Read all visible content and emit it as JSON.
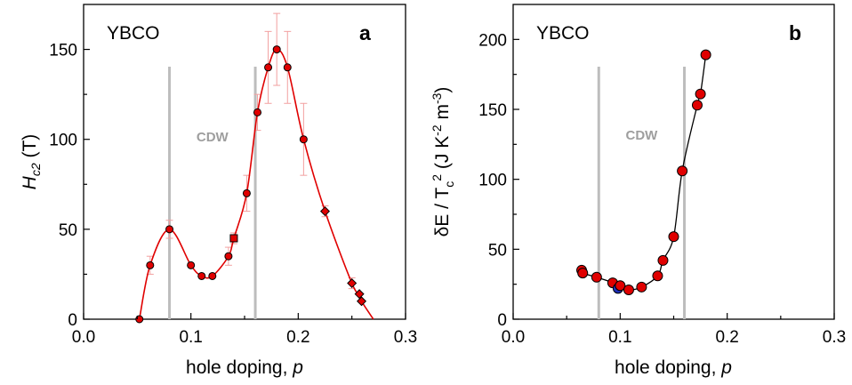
{
  "chart_data": [
    {
      "type": "scatter",
      "panel_letter": "a",
      "sample_label": "YBCO",
      "band_label": "CDW",
      "band_x": [
        0.08,
        0.16
      ],
      "xlabel": "hole doping, p",
      "ylabel": "H_c2 (T)",
      "xlim": [
        0.0,
        0.3
      ],
      "ylim": [
        0,
        175
      ],
      "xticks": [
        0.0,
        0.1,
        0.2,
        0.3
      ],
      "xtick_labels": [
        "0.0",
        "0.1",
        "0.2",
        "0.3"
      ],
      "yticks": [
        0,
        50,
        100,
        150
      ],
      "ytick_labels": [
        "0",
        "50",
        "100",
        "150"
      ],
      "grid": false,
      "colors": {
        "curve": "#e00000",
        "marker": "#e00000",
        "error_bar": "#f2a0a0",
        "band": "#bdbdbd"
      },
      "points": [
        {
          "x": 0.052,
          "y": 0,
          "marker": "circle"
        },
        {
          "x": 0.062,
          "y": 30,
          "err": 5,
          "marker": "circle"
        },
        {
          "x": 0.08,
          "y": 50,
          "err": 5,
          "marker": "circle"
        },
        {
          "x": 0.1,
          "y": 30,
          "marker": "circle"
        },
        {
          "x": 0.11,
          "y": 24,
          "marker": "circle"
        },
        {
          "x": 0.12,
          "y": 24,
          "marker": "circle"
        },
        {
          "x": 0.135,
          "y": 35,
          "err": 5,
          "marker": "circle"
        },
        {
          "x": 0.14,
          "y": 45,
          "err": 3,
          "marker": "square"
        },
        {
          "x": 0.152,
          "y": 70,
          "err": 10,
          "marker": "circle"
        },
        {
          "x": 0.162,
          "y": 115,
          "err": 10,
          "marker": "circle"
        },
        {
          "x": 0.172,
          "y": 140,
          "err": 20,
          "marker": "circle"
        },
        {
          "x": 0.18,
          "y": 150,
          "err": 20,
          "marker": "circle"
        },
        {
          "x": 0.19,
          "y": 140,
          "err": 20,
          "marker": "circle"
        },
        {
          "x": 0.205,
          "y": 100,
          "err": 20,
          "marker": "circle"
        },
        {
          "x": 0.225,
          "y": 60,
          "err": 3,
          "marker": "diamond"
        },
        {
          "x": 0.25,
          "y": 20,
          "err": 3,
          "marker": "diamond"
        },
        {
          "x": 0.257,
          "y": 14,
          "marker": "diamond"
        },
        {
          "x": 0.259,
          "y": 10,
          "marker": "diamond"
        }
      ]
    },
    {
      "type": "scatter",
      "panel_letter": "b",
      "sample_label": "YBCO",
      "band_label": "CDW",
      "band_x": [
        0.08,
        0.16
      ],
      "xlabel": "hole doping, p",
      "ylabel": "δE / T_c^2 (J K^-2 m^-3)",
      "xlim": [
        0.0,
        0.3
      ],
      "ylim": [
        0,
        225
      ],
      "xticks": [
        0.0,
        0.1,
        0.2,
        0.3
      ],
      "xtick_labels": [
        "0.0",
        "0.1",
        "0.2",
        "0.3"
      ],
      "yticks": [
        0,
        50,
        100,
        150,
        200
      ],
      "ytick_labels": [
        "0",
        "50",
        "100",
        "150",
        "200"
      ],
      "grid": false,
      "colors": {
        "curve": "#000000",
        "marker": "#e00000",
        "highlight_marker": "#1f2fb8",
        "band": "#bdbdbd"
      },
      "points": [
        {
          "x": 0.064,
          "y": 35
        },
        {
          "x": 0.065,
          "y": 33
        },
        {
          "x": 0.078,
          "y": 30
        },
        {
          "x": 0.093,
          "y": 26
        },
        {
          "x": 0.098,
          "y": 22,
          "highlight": true
        },
        {
          "x": 0.1,
          "y": 24
        },
        {
          "x": 0.108,
          "y": 21
        },
        {
          "x": 0.12,
          "y": 23
        },
        {
          "x": 0.135,
          "y": 31
        },
        {
          "x": 0.14,
          "y": 42
        },
        {
          "x": 0.15,
          "y": 59
        },
        {
          "x": 0.158,
          "y": 106
        },
        {
          "x": 0.172,
          "y": 153
        },
        {
          "x": 0.175,
          "y": 161
        },
        {
          "x": 0.18,
          "y": 189
        }
      ]
    }
  ]
}
